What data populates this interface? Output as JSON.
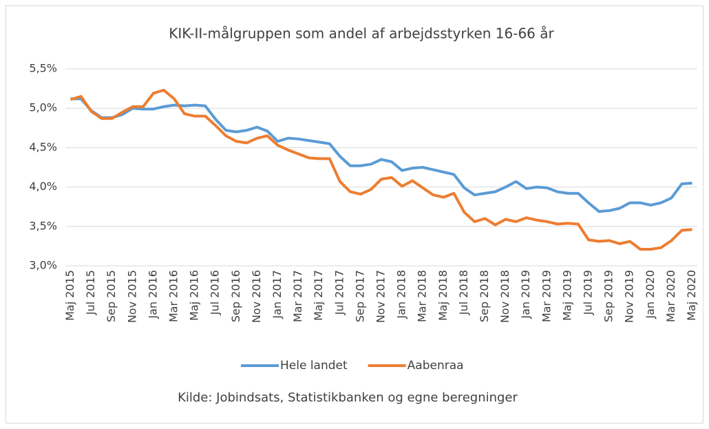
{
  "chart_data": {
    "type": "line",
    "title": "KIK-II-målgruppen som andel af arbejdsstyrken 16-66 år",
    "source": "Kilde: Jobindsats, Statistikbanken og egne beregninger",
    "categories": [
      "Maj 2015",
      null,
      "Jul 2015",
      null,
      "Sep 2015",
      null,
      "Nov 2015",
      null,
      "Jan 2016",
      null,
      "Mar 2016",
      null,
      "Maj 2016",
      null,
      "Jul 2016",
      null,
      "Sep 2016",
      null,
      "Nov 2016",
      null,
      "Jan 2017",
      null,
      "Mar 2017",
      null,
      "Maj 2017",
      null,
      "Jul 2017",
      null,
      "Sep 2017",
      null,
      "Nov 2017",
      null,
      "Jan 2018",
      null,
      "Mar 2018",
      null,
      "Maj 2018",
      null,
      "Jul 2018",
      null,
      "Sep 2018",
      null,
      "Nov 2018",
      null,
      "Jan 2019",
      null,
      "Mar 2019",
      null,
      "Maj 2019",
      null,
      "Jul 2019",
      null,
      "Sep 2019",
      null,
      "Nov 2019",
      null,
      "Jan 2020",
      null,
      "Mar 2020",
      null,
      "Maj 2020"
    ],
    "series": [
      {
        "name": "Hele landet",
        "color": "#5b9bd5",
        "values": [
          5.12,
          5.12,
          4.97,
          4.88,
          4.88,
          4.92,
          5.0,
          4.99,
          4.99,
          5.02,
          5.04,
          5.03,
          5.04,
          5.03,
          4.86,
          4.72,
          4.7,
          4.72,
          4.76,
          4.71,
          4.58,
          4.62,
          4.61,
          4.59,
          4.57,
          4.55,
          4.39,
          4.27,
          4.27,
          4.29,
          4.35,
          4.32,
          4.21,
          4.24,
          4.25,
          4.22,
          4.19,
          4.16,
          3.99,
          3.9,
          3.92,
          3.94,
          4.0,
          4.07,
          3.98,
          4.0,
          3.99,
          3.94,
          3.92,
          3.92,
          3.8,
          3.69,
          3.7,
          3.73,
          3.8,
          3.8,
          3.77,
          3.8,
          3.86,
          4.04,
          4.05
        ]
      },
      {
        "name": "Aabenraa",
        "color": "#ed7d31",
        "values": [
          5.11,
          5.15,
          4.96,
          4.87,
          4.87,
          4.95,
          5.02,
          5.02,
          5.19,
          5.23,
          5.12,
          4.93,
          4.9,
          4.9,
          4.78,
          4.65,
          4.58,
          4.56,
          4.62,
          4.65,
          4.53,
          4.47,
          4.42,
          4.37,
          4.36,
          4.36,
          4.07,
          3.94,
          3.91,
          3.97,
          4.1,
          4.12,
          4.01,
          4.08,
          3.99,
          3.9,
          3.87,
          3.92,
          3.68,
          3.56,
          3.6,
          3.52,
          3.59,
          3.56,
          3.61,
          3.58,
          3.56,
          3.53,
          3.54,
          3.53,
          3.33,
          3.31,
          3.32,
          3.28,
          3.31,
          3.21,
          3.21,
          3.23,
          3.32,
          3.45,
          3.46
        ]
      }
    ],
    "ylim": [
      3.0,
      5.5
    ],
    "yticks": [
      {
        "value": 3.0,
        "label": "3,0%"
      },
      {
        "value": 3.5,
        "label": "3,5%"
      },
      {
        "value": 4.0,
        "label": "4,0%"
      },
      {
        "value": 4.5,
        "label": "4,5%"
      },
      {
        "value": 5.0,
        "label": "5,0%"
      },
      {
        "value": 5.5,
        "label": "5,5%"
      }
    ],
    "grid": true,
    "legend": "bottom"
  }
}
